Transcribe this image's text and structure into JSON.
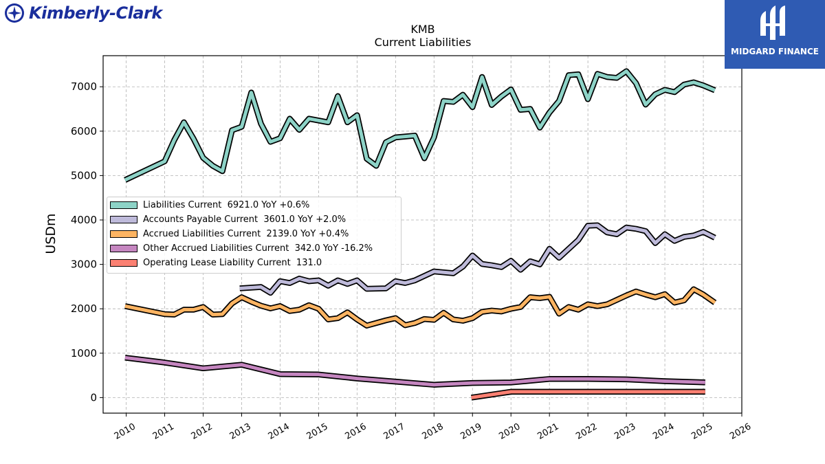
{
  "brand": {
    "left_logo_text": "Kimberly-Clark",
    "right_logo_text": "MIDGARD FINANCE"
  },
  "chart_data": {
    "type": "line",
    "title": "KMB",
    "subtitle": "Current  Liabilities",
    "ylabel": "USDm",
    "xlabel": "",
    "xlim": [
      2009.4,
      2026.0
    ],
    "ylim": [
      -350,
      7700
    ],
    "x_ticks": [
      2010,
      2011,
      2012,
      2013,
      2014,
      2015,
      2016,
      2017,
      2018,
      2019,
      2020,
      2021,
      2022,
      2023,
      2024,
      2025,
      2026
    ],
    "y_ticks": [
      0,
      1000,
      2000,
      3000,
      4000,
      5000,
      6000,
      7000
    ],
    "grid": true,
    "legend_position": "center-left",
    "series": [
      {
        "name": "Liabilities Current",
        "legend": "Liabilities Current  6921.0 YoY +0.6%",
        "color": "#8dd3c7",
        "x": [
          2009.97,
          2011.0,
          2011.25,
          2011.5,
          2011.75,
          2012.0,
          2012.25,
          2012.5,
          2012.75,
          2013.0,
          2013.25,
          2013.5,
          2013.75,
          2014.0,
          2014.25,
          2014.5,
          2014.75,
          2015.0,
          2015.25,
          2015.5,
          2015.75,
          2016.0,
          2016.25,
          2016.5,
          2016.75,
          2017.0,
          2017.25,
          2017.5,
          2017.75,
          2018.0,
          2018.25,
          2018.5,
          2018.75,
          2019.0,
          2019.25,
          2019.5,
          2019.75,
          2020.0,
          2020.25,
          2020.5,
          2020.75,
          2021.0,
          2021.25,
          2021.5,
          2021.75,
          2022.0,
          2022.25,
          2022.5,
          2022.75,
          2023.0,
          2023.25,
          2023.5,
          2023.75,
          2024.0,
          2024.25,
          2024.5,
          2024.75,
          2025.0,
          2025.3
        ],
        "y": [
          4900,
          5320,
          5800,
          6200,
          5830,
          5400,
          5220,
          5100,
          6020,
          6100,
          6870,
          6170,
          5760,
          5840,
          6280,
          6030,
          6280,
          6240,
          6200,
          6790,
          6200,
          6360,
          5380,
          5220,
          5750,
          5860,
          5880,
          5900,
          5390,
          5860,
          6680,
          6660,
          6820,
          6540,
          7220,
          6590,
          6780,
          6940,
          6480,
          6500,
          6080,
          6420,
          6680,
          7260,
          7280,
          6720,
          7290,
          7220,
          7200,
          7350,
          7080,
          6600,
          6830,
          6930,
          6880,
          7050,
          7100,
          7030,
          6921
        ]
      },
      {
        "name": "Accounts Payable Current",
        "legend": "Accounts Payable Current  3601.0 YoY +2.0%",
        "color": "#bebada",
        "x": [
          2012.95,
          2013.5,
          2013.75,
          2014.0,
          2014.25,
          2014.5,
          2014.75,
          2015.0,
          2015.25,
          2015.5,
          2015.75,
          2016.0,
          2016.25,
          2016.75,
          2017.0,
          2017.25,
          2017.5,
          2018.0,
          2018.5,
          2018.75,
          2019.0,
          2019.25,
          2019.5,
          2019.75,
          2020.0,
          2020.25,
          2020.5,
          2020.75,
          2021.0,
          2021.25,
          2021.5,
          2021.75,
          2022.0,
          2022.25,
          2022.5,
          2022.75,
          2023.0,
          2023.25,
          2023.5,
          2023.75,
          2024.0,
          2024.25,
          2024.5,
          2024.75,
          2025.0,
          2025.3
        ],
        "y": [
          2460,
          2490,
          2360,
          2620,
          2580,
          2680,
          2620,
          2640,
          2520,
          2640,
          2560,
          2640,
          2450,
          2460,
          2620,
          2580,
          2640,
          2840,
          2800,
          2950,
          3200,
          3010,
          2980,
          2940,
          3080,
          2880,
          3070,
          3000,
          3350,
          3150,
          3350,
          3550,
          3870,
          3880,
          3720,
          3680,
          3830,
          3800,
          3750,
          3480,
          3680,
          3530,
          3620,
          3650,
          3730,
          3601
        ]
      },
      {
        "name": "Accrued Liabilities Current",
        "legend": "Accrued Liabilities Current  2139.0 YoY +0.4%",
        "color": "#fdb462",
        "x": [
          2009.97,
          2011.0,
          2011.25,
          2011.5,
          2011.75,
          2012.0,
          2012.25,
          2012.5,
          2012.75,
          2013.0,
          2013.25,
          2013.5,
          2013.75,
          2014.0,
          2014.25,
          2014.5,
          2014.75,
          2015.0,
          2015.25,
          2015.5,
          2015.75,
          2016.0,
          2016.25,
          2016.5,
          2016.75,
          2017.0,
          2017.25,
          2017.5,
          2017.75,
          2018.0,
          2018.25,
          2018.5,
          2018.75,
          2019.0,
          2019.25,
          2019.5,
          2019.75,
          2020.0,
          2020.25,
          2020.5,
          2020.75,
          2021.0,
          2021.25,
          2021.5,
          2021.75,
          2022.0,
          2022.25,
          2022.5,
          2022.75,
          2023.0,
          2023.25,
          2023.5,
          2023.75,
          2024.0,
          2024.25,
          2024.5,
          2024.75,
          2025.0,
          2025.3
        ],
        "y": [
          2060,
          1880,
          1870,
          1980,
          1980,
          2040,
          1870,
          1880,
          2120,
          2260,
          2160,
          2070,
          2010,
          2060,
          1950,
          1980,
          2080,
          2000,
          1760,
          1790,
          1920,
          1760,
          1620,
          1680,
          1740,
          1790,
          1630,
          1680,
          1770,
          1750,
          1910,
          1760,
          1730,
          1790,
          1930,
          1960,
          1940,
          2000,
          2040,
          2260,
          2240,
          2270,
          1890,
          2040,
          1980,
          2100,
          2060,
          2100,
          2200,
          2300,
          2390,
          2320,
          2260,
          2330,
          2140,
          2190,
          2440,
          2320,
          2139
        ]
      },
      {
        "name": "Other Accrued Liabilities Current",
        "legend": "Other Accrued Liabilities Current  342.0 YoY -16.2%",
        "color": "#c586c0",
        "x": [
          2009.97,
          2011.0,
          2012.0,
          2013.0,
          2014.0,
          2015.0,
          2016.0,
          2017.0,
          2018.0,
          2019.0,
          2020.0,
          2021.0,
          2022.0,
          2023.0,
          2024.0,
          2025.05
        ],
        "y": [
          900,
          790,
          660,
          740,
          530,
          520,
          430,
          360,
          290,
          330,
          340,
          420,
          420,
          410,
          370,
          342
        ]
      },
      {
        "name": "Operating Lease Liability Current",
        "legend": "Operating Lease Liability Current  131.0",
        "color": "#fb8072",
        "x": [
          2018.97,
          2020.0,
          2021.0,
          2022.0,
          2023.0,
          2024.0,
          2025.05
        ],
        "y": [
          0,
          131,
          131,
          131,
          131,
          131,
          131
        ]
      }
    ]
  }
}
